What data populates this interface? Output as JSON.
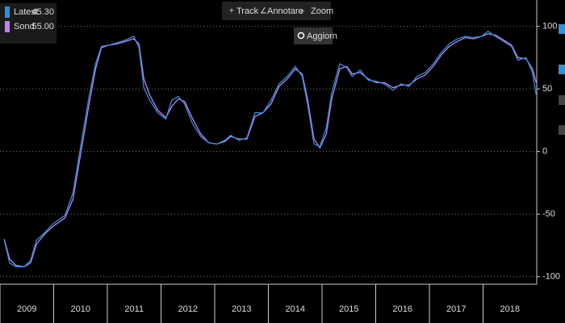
{
  "toolbar": {
    "track": "Track",
    "annotate": "Annotare",
    "zoom": "Zoom",
    "refresh": "Aggiorn"
  },
  "chart_data": {
    "type": "line",
    "x": [
      2009.08,
      2009.18,
      2009.3,
      2009.45,
      2009.57,
      2009.68,
      2009.83,
      2009.98,
      2010.21,
      2010.36,
      2010.51,
      2010.66,
      2010.78,
      2010.89,
      2011.04,
      2011.19,
      2011.34,
      2011.49,
      2011.59,
      2011.68,
      2011.79,
      2011.94,
      2012.09,
      2012.2,
      2012.32,
      2012.44,
      2012.59,
      2012.74,
      2012.89,
      2013.04,
      2013.19,
      2013.3,
      2013.45,
      2013.6,
      2013.75,
      2013.9,
      2014.05,
      2014.2,
      2014.35,
      2014.5,
      2014.63,
      2014.73,
      2014.85,
      2014.96,
      2015.08,
      2015.18,
      2015.33,
      2015.46,
      2015.56,
      2015.71,
      2015.86,
      2016.01,
      2016.16,
      2016.32,
      2016.47,
      2016.62,
      2016.77,
      2016.92,
      2017.07,
      2017.22,
      2017.37,
      2017.52,
      2017.67,
      2017.82,
      2017.97,
      2018.09,
      2018.23,
      2018.38,
      2018.53,
      2018.65,
      2018.8,
      2018.92,
      2018.99
    ],
    "series": [
      {
        "name": "Latest",
        "color": "#2f8fe0",
        "last_value_label": "45.30",
        "values": [
          -71,
          -89,
          -92,
          -92,
          -87,
          -71,
          -65,
          -58,
          -51,
          -33,
          6,
          44,
          70,
          84,
          85,
          87,
          89,
          92,
          83,
          51,
          41,
          31,
          26,
          41,
          44,
          38,
          22,
          12,
          7,
          6,
          9,
          13,
          9,
          11,
          31,
          31,
          41,
          54,
          60,
          68,
          60,
          38,
          6,
          4,
          19,
          47,
          70,
          67,
          60,
          65,
          57,
          56,
          54,
          49,
          54,
          52,
          60,
          63,
          70,
          79,
          86,
          90,
          92,
          91,
          92,
          96,
          92,
          88,
          84,
          73,
          75,
          63,
          45.3
        ]
      },
      {
        "name": "Sond",
        "color": "#c77ff0",
        "last_value_label": "55.00",
        "values": [
          -70,
          -86,
          -91,
          -92,
          -89,
          -74,
          -66,
          -60,
          -53,
          -38,
          0,
          38,
          66,
          83,
          85,
          86,
          88,
          90,
          86,
          58,
          45,
          33,
          27,
          36,
          42,
          40,
          26,
          14,
          7,
          6,
          8,
          12,
          10,
          10,
          28,
          31,
          38,
          52,
          58,
          66,
          62,
          42,
          10,
          3,
          14,
          42,
          66,
          68,
          62,
          63,
          58,
          55,
          55,
          51,
          53,
          53,
          58,
          61,
          68,
          77,
          84,
          88,
          91,
          90,
          92,
          94,
          93,
          89,
          85,
          75,
          74,
          66,
          55
        ]
      }
    ],
    "xlim": [
      2009,
      2019
    ],
    "xticks": [
      2009,
      2010,
      2011,
      2012,
      2013,
      2014,
      2015,
      2016,
      2017,
      2018
    ],
    "ylim": [
      -106,
      121
    ],
    "yticks": [
      -100,
      -50,
      0,
      50,
      100
    ],
    "grid": true
  }
}
